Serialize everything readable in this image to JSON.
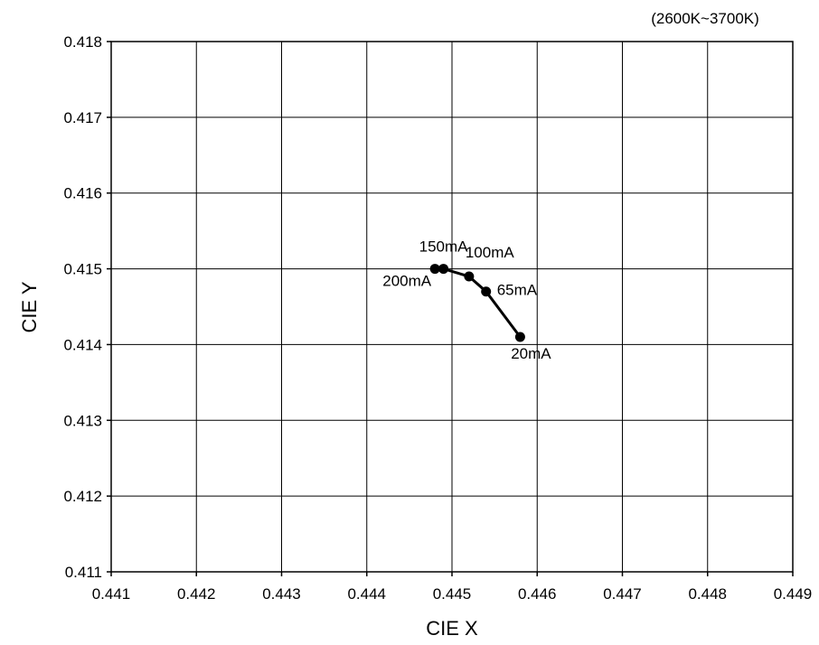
{
  "chart_data": {
    "type": "line",
    "title": "",
    "subtitle": "(2600K~3700K)",
    "xlabel": "CIE X",
    "ylabel": "CIE Y",
    "xlim": [
      0.441,
      0.449
    ],
    "ylim": [
      0.411,
      0.418
    ],
    "grid": true,
    "x_ticks": [
      "0.441",
      "0.442",
      "0.443",
      "0.444",
      "0.445",
      "0.446",
      "0.447",
      "0.448",
      "0.449"
    ],
    "y_ticks": [
      "0.411",
      "0.412",
      "0.413",
      "0.414",
      "0.415",
      "0.416",
      "0.417",
      "0.418"
    ],
    "series": [
      {
        "points": [
          {
            "x": 0.4458,
            "y": 0.4141,
            "label": "20mA"
          },
          {
            "x": 0.4454,
            "y": 0.4147,
            "label": "65mA"
          },
          {
            "x": 0.4452,
            "y": 0.4149,
            "label": "100mA"
          },
          {
            "x": 0.4449,
            "y": 0.415,
            "label": "150mA"
          },
          {
            "x": 0.4448,
            "y": 0.415,
            "label": "200mA"
          }
        ]
      }
    ]
  }
}
